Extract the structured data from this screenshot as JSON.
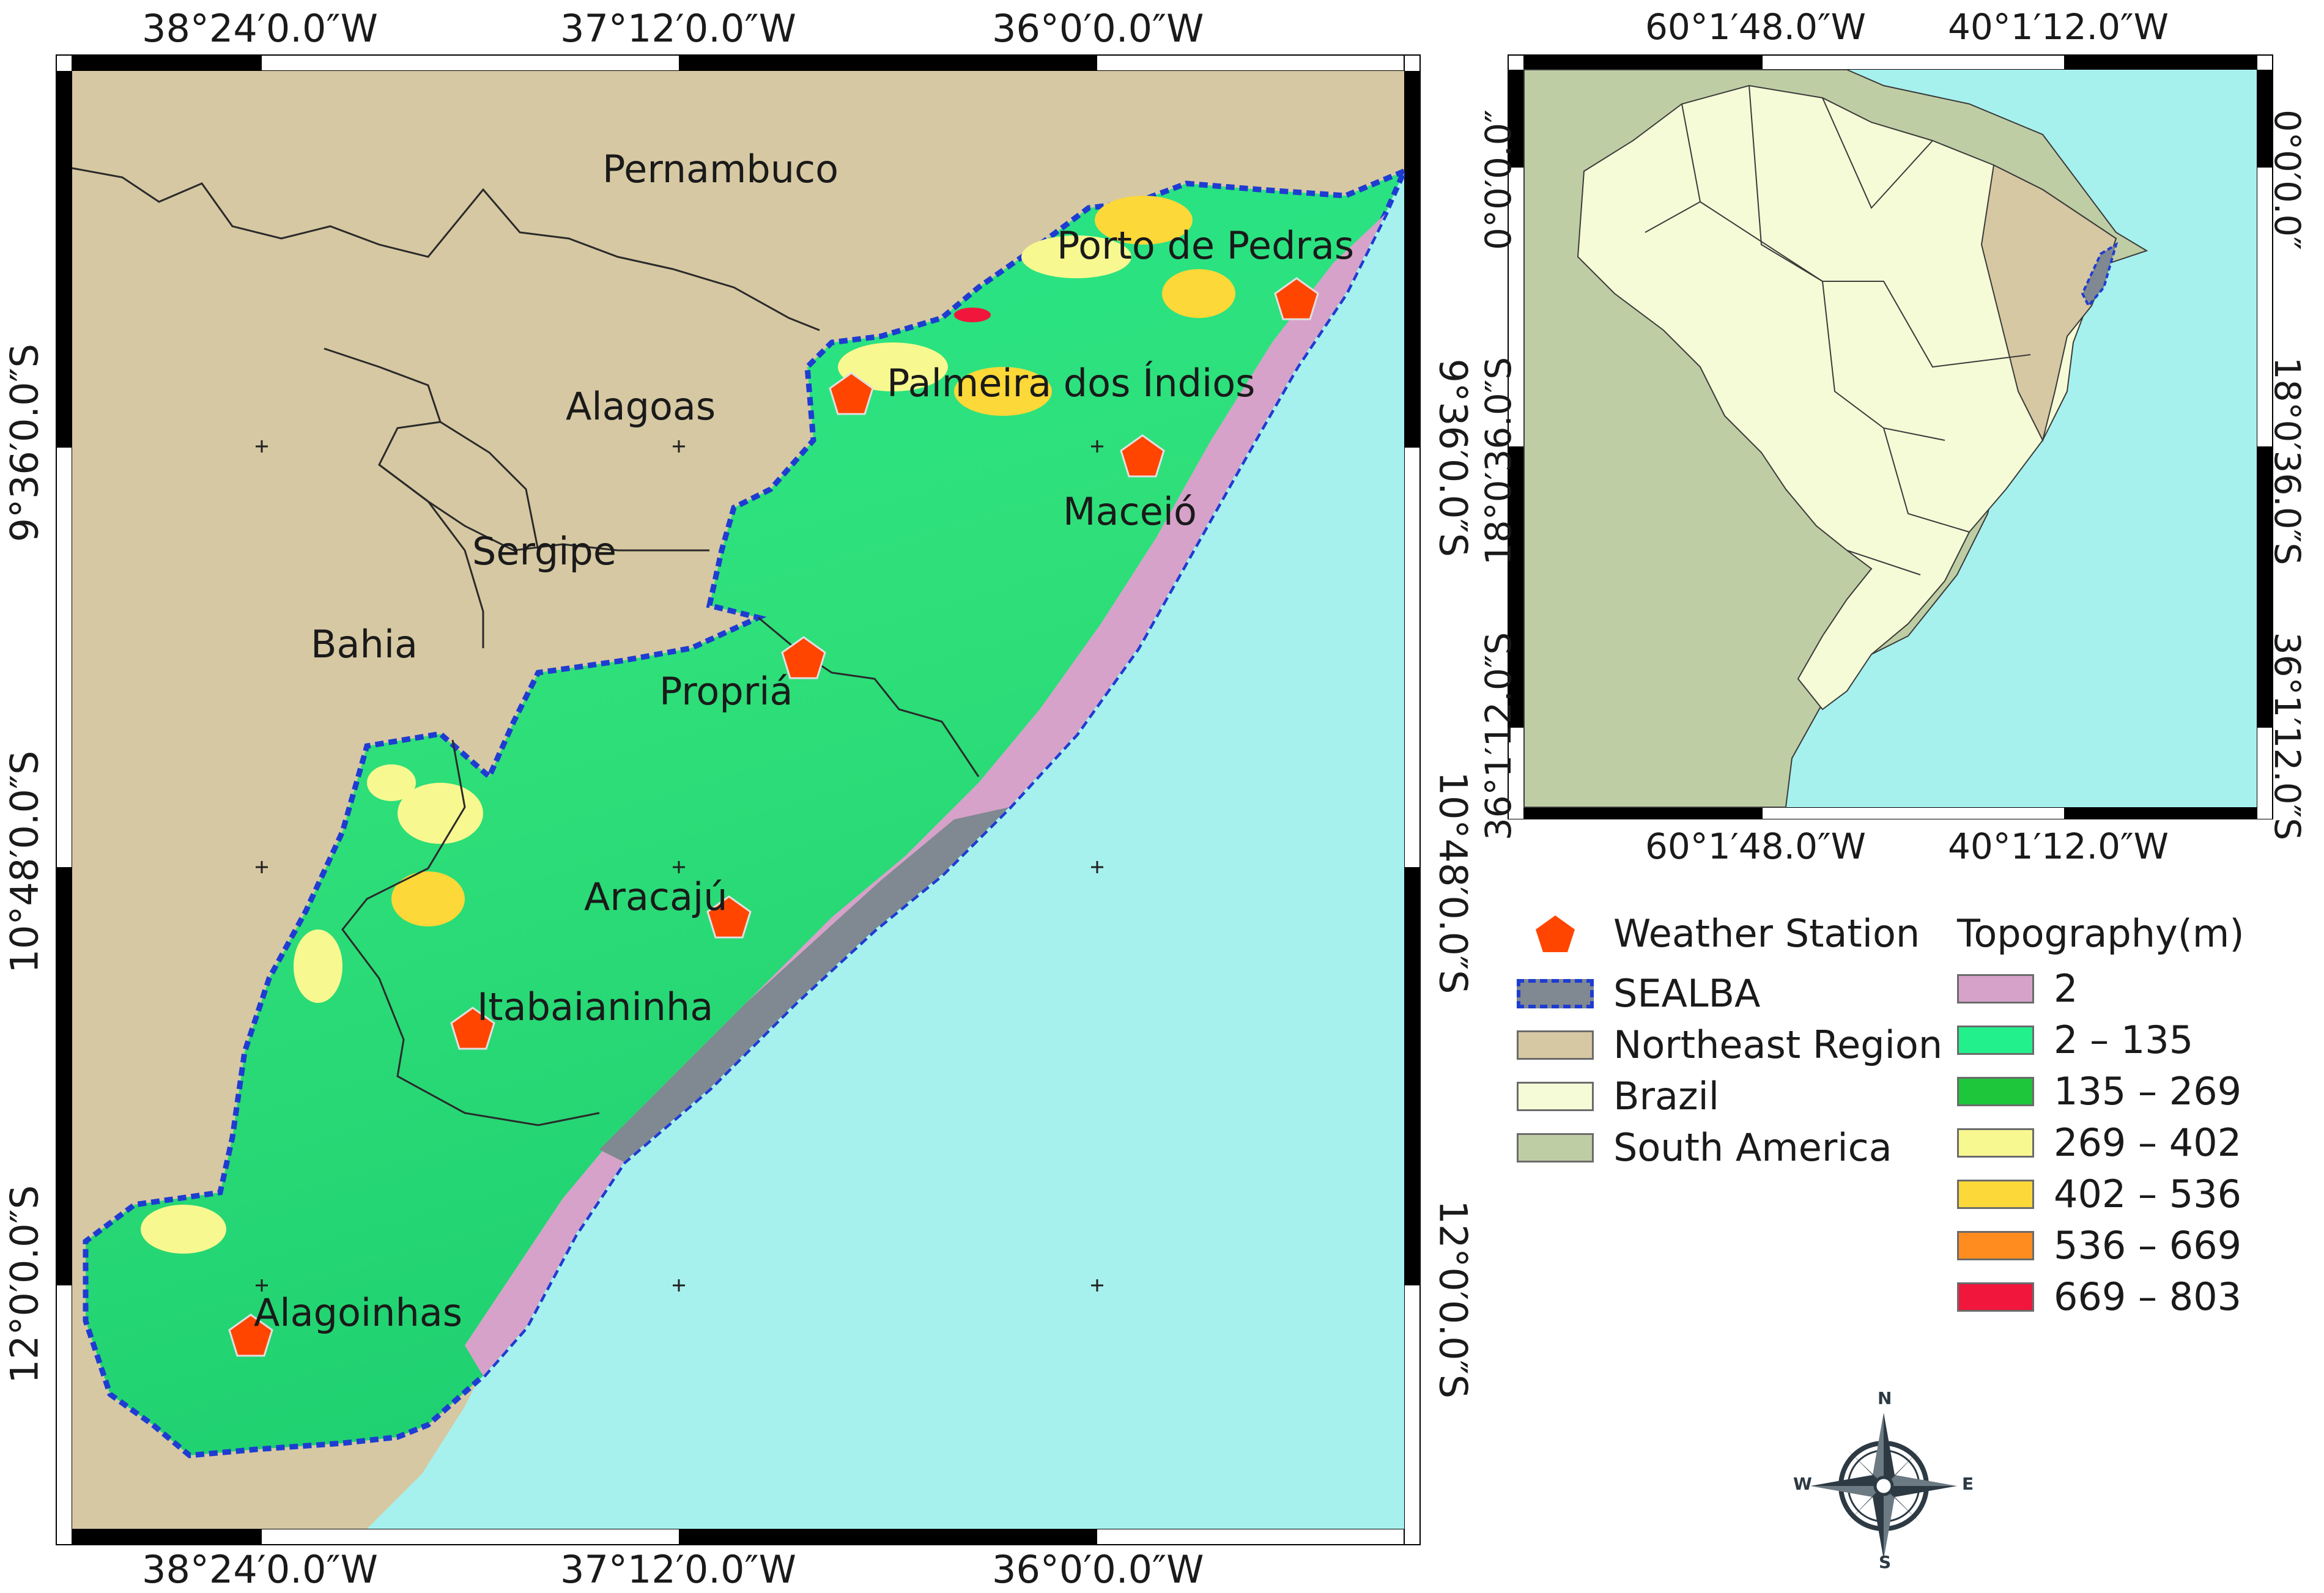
{
  "main_map": {
    "top_lon_labels": [
      "38°24′0.0″W",
      "37°12′0.0″W",
      "36°0′0.0″W"
    ],
    "bottom_lon_labels": [
      "38°24′0.0″W",
      "37°12′0.0″W",
      "36°0′0.0″W"
    ],
    "left_lat_labels": [
      "9°36′0.0″S",
      "10°48′0.0″S",
      "12°0′0.0″S"
    ],
    "right_lat_labels": [
      "9°36′0.0″S",
      "10°48′0.0″S",
      "12°0′0.0″S"
    ],
    "state_labels": [
      "Pernambuco",
      "Alagoas",
      "Sergipe",
      "Bahia"
    ],
    "stations": [
      "Porto de Pedras",
      "Palmeira dos Índios",
      "Maceió",
      "Propriá",
      "Aracajú",
      "Itabaianinha",
      "Alagoinhas"
    ]
  },
  "inset_map": {
    "top_lon_labels": [
      "60°1′48.0″W",
      "40°1′12.0″W"
    ],
    "bottom_lon_labels": [
      "60°1′48.0″W",
      "40°1′12.0″W"
    ],
    "left_lat_labels": [
      "0°0′0.0″",
      "18°0′36.0″S",
      "36°1′12.0″S"
    ],
    "right_lat_labels": [
      "0°0′0.0″",
      "18°0′36.0″S",
      "36°1′12.0″S"
    ]
  },
  "legend": {
    "items": [
      {
        "label": "Weather Station",
        "color": "#ff4500"
      },
      {
        "label": "SEALBA",
        "color": "#808891"
      },
      {
        "label": "Northeast Region",
        "color": "#d6c8a2"
      },
      {
        "label": "Brazil",
        "color": "#f5fbd6"
      },
      {
        "label": "South America",
        "color": "#bfcda5"
      }
    ],
    "topo_title": "Topography(m)",
    "topo_classes": [
      {
        "label": "2",
        "color": "#d6a2c9"
      },
      {
        "label": "2 – 135",
        "color": "#22f08c"
      },
      {
        "label": "135 – 269",
        "color": "#1ec63c"
      },
      {
        "label": "269 – 402",
        "color": "#f8f890"
      },
      {
        "label": "402 – 536",
        "color": "#fcd838"
      },
      {
        "label": "536 – 669",
        "color": "#ff8c1e"
      },
      {
        "label": "669 – 803",
        "color": "#f0163c"
      }
    ]
  },
  "compass": {
    "n": "N",
    "s": "S",
    "e": "E",
    "w": "W"
  },
  "colors": {
    "ocean": "#a6f1ee",
    "northeast": "#d6c8a2",
    "brazil": "#f5fbd6",
    "south_america": "#bfcda5",
    "sealba_border": "#1e3cd2",
    "coast_gray": "#808891"
  }
}
